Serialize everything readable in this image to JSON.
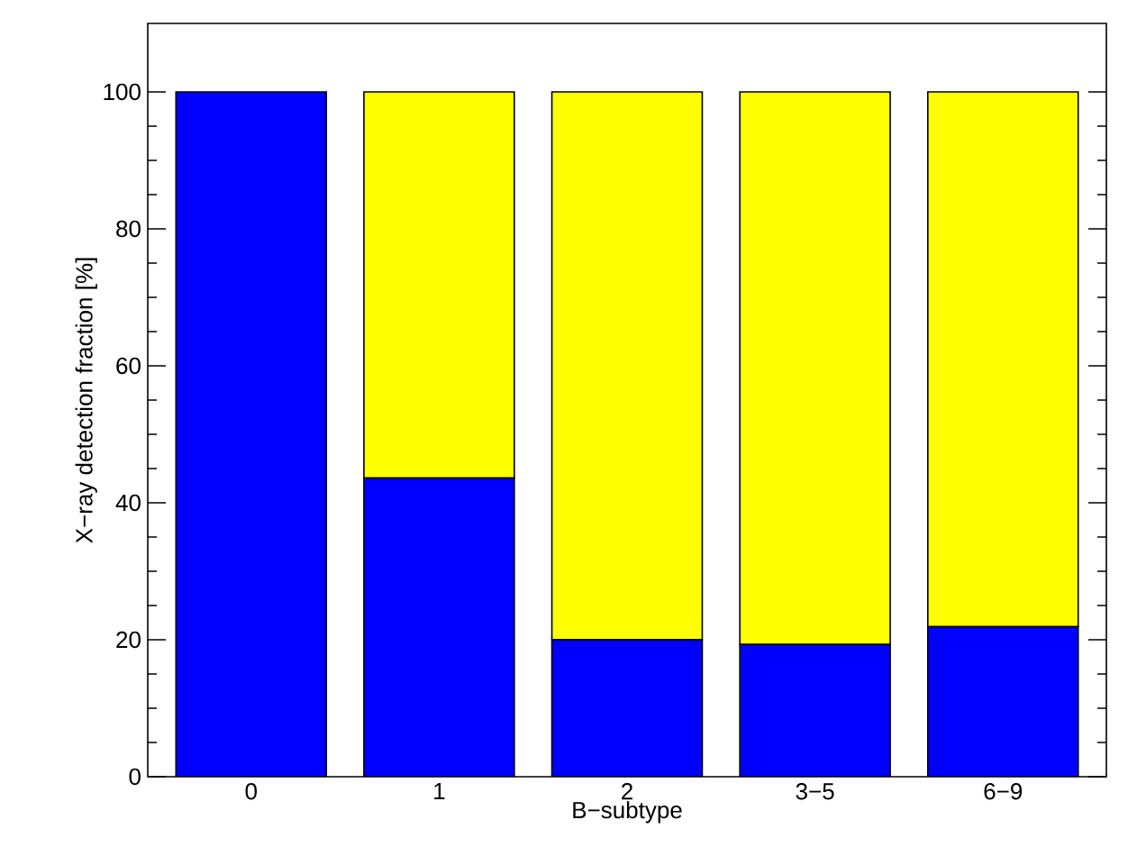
{
  "chart_data": {
    "type": "bar",
    "stacked": true,
    "xlabel": "B−subtype",
    "ylabel": "X−ray detection fraction [%]",
    "categories": [
      "0",
      "1",
      "2",
      "3−5",
      "6−9"
    ],
    "series": [
      {
        "color": "#0000ff",
        "values": [
          100,
          43.6,
          20.0,
          19.3,
          21.9
        ]
      },
      {
        "color": "#ffff00",
        "values": [
          0,
          56.4,
          80.0,
          80.7,
          78.1
        ]
      }
    ],
    "ylim": [
      0,
      110
    ],
    "yticks": [
      0,
      20,
      40,
      60,
      80,
      100
    ],
    "grid": false
  }
}
